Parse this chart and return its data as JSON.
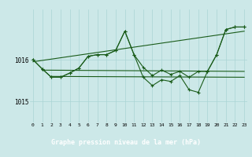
{
  "title": "Graphe pression niveau de la mer (hPa)",
  "bg_color": "#cce8e8",
  "label_bg_color": "#2d6e2d",
  "label_text_color": "#ffffff",
  "grid_color": "#aad4d4",
  "line_color": "#1a5c1a",
  "x_labels": [
    "0",
    "1",
    "2",
    "3",
    "4",
    "5",
    "6",
    "7",
    "8",
    "9",
    "10",
    "11",
    "12",
    "13",
    "14",
    "15",
    "16",
    "17",
    "18",
    "19",
    "20",
    "21",
    "22",
    "23"
  ],
  "y_ticks": [
    1015,
    1016
  ],
  "ylim": [
    1014.5,
    1017.2
  ],
  "xlim": [
    -0.3,
    23.3
  ],
  "series1_x": [
    0,
    1,
    2,
    3,
    4,
    5,
    6,
    7,
    8,
    9,
    10,
    11,
    12,
    13,
    14,
    15,
    16,
    17,
    18,
    19,
    20,
    21,
    22,
    23
  ],
  "series1_y": [
    1016.0,
    1015.78,
    1015.58,
    1015.58,
    1015.68,
    1015.8,
    1016.08,
    1016.12,
    1016.12,
    1016.22,
    1016.68,
    1016.12,
    1015.82,
    1015.62,
    1015.75,
    1015.65,
    1015.72,
    1015.58,
    1015.72,
    1015.72,
    1016.12,
    1016.72,
    1016.78,
    1016.78
  ],
  "series2_x": [
    0,
    1,
    2,
    3,
    4,
    5,
    6,
    7,
    8,
    9,
    10,
    11,
    12,
    13,
    14,
    15,
    16,
    17,
    18,
    19,
    20,
    21,
    22,
    23
  ],
  "series2_y": [
    1016.0,
    1015.78,
    1015.58,
    1015.58,
    1015.68,
    1015.8,
    1016.08,
    1016.12,
    1016.12,
    1016.22,
    1016.68,
    1016.12,
    1015.58,
    1015.38,
    1015.52,
    1015.48,
    1015.62,
    1015.28,
    1015.22,
    1015.72,
    1016.12,
    1016.72,
    1016.78,
    1016.78
  ],
  "trend1_x": [
    0,
    23
  ],
  "trend1_y": [
    1015.95,
    1016.68
  ],
  "trend2_x": [
    1,
    23
  ],
  "trend2_y": [
    1015.75,
    1015.72
  ],
  "trend3_x": [
    2,
    23
  ],
  "trend3_y": [
    1015.6,
    1015.58
  ]
}
